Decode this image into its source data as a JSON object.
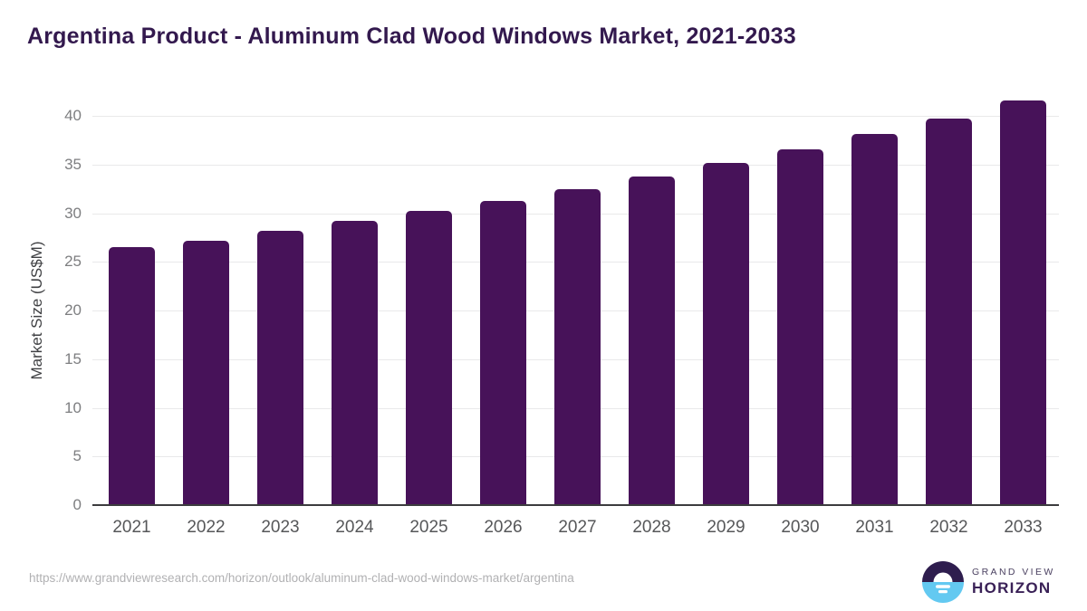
{
  "title": "Argentina Product - Aluminum Clad Wood Windows Market, 2021-2033",
  "chart_data": {
    "type": "bar",
    "title": "Argentina Product - Aluminum Clad Wood Windows Market, 2021-2033",
    "categories": [
      "2021",
      "2022",
      "2023",
      "2024",
      "2025",
      "2026",
      "2027",
      "2028",
      "2029",
      "2030",
      "2031",
      "2032",
      "2033"
    ],
    "values": [
      26.5,
      27.2,
      28.2,
      29.2,
      30.2,
      31.3,
      32.5,
      33.8,
      35.2,
      36.6,
      38.1,
      39.7,
      41.6
    ],
    "xlabel": "",
    "ylabel": "Market Size (US$M)",
    "ylim": [
      0,
      42
    ],
    "yticks": [
      0,
      5,
      10,
      15,
      20,
      25,
      30,
      35,
      40
    ],
    "grid": "horizontal",
    "legend": "none",
    "bar_color": "#471259"
  },
  "footer": {
    "source_url": "https://www.grandviewresearch.com/horizon/outlook/aluminum-clad-wood-windows-market/argentina",
    "logo": {
      "line1": "GRAND VIEW",
      "line2": "HORIZON",
      "icon": "horizon-sun-over-water-icon",
      "icon_dark_color": "#2e1d4e",
      "icon_blue_color": "#63c9f1"
    }
  },
  "colors": {
    "title_text": "#33194e",
    "bar": "#471259",
    "axis_line": "#3c3c3e",
    "gridline": "#e9e9ea",
    "y_tick_text": "#7d7e80",
    "x_tick_text": "#565759",
    "url_text": "#b1b1b3"
  }
}
